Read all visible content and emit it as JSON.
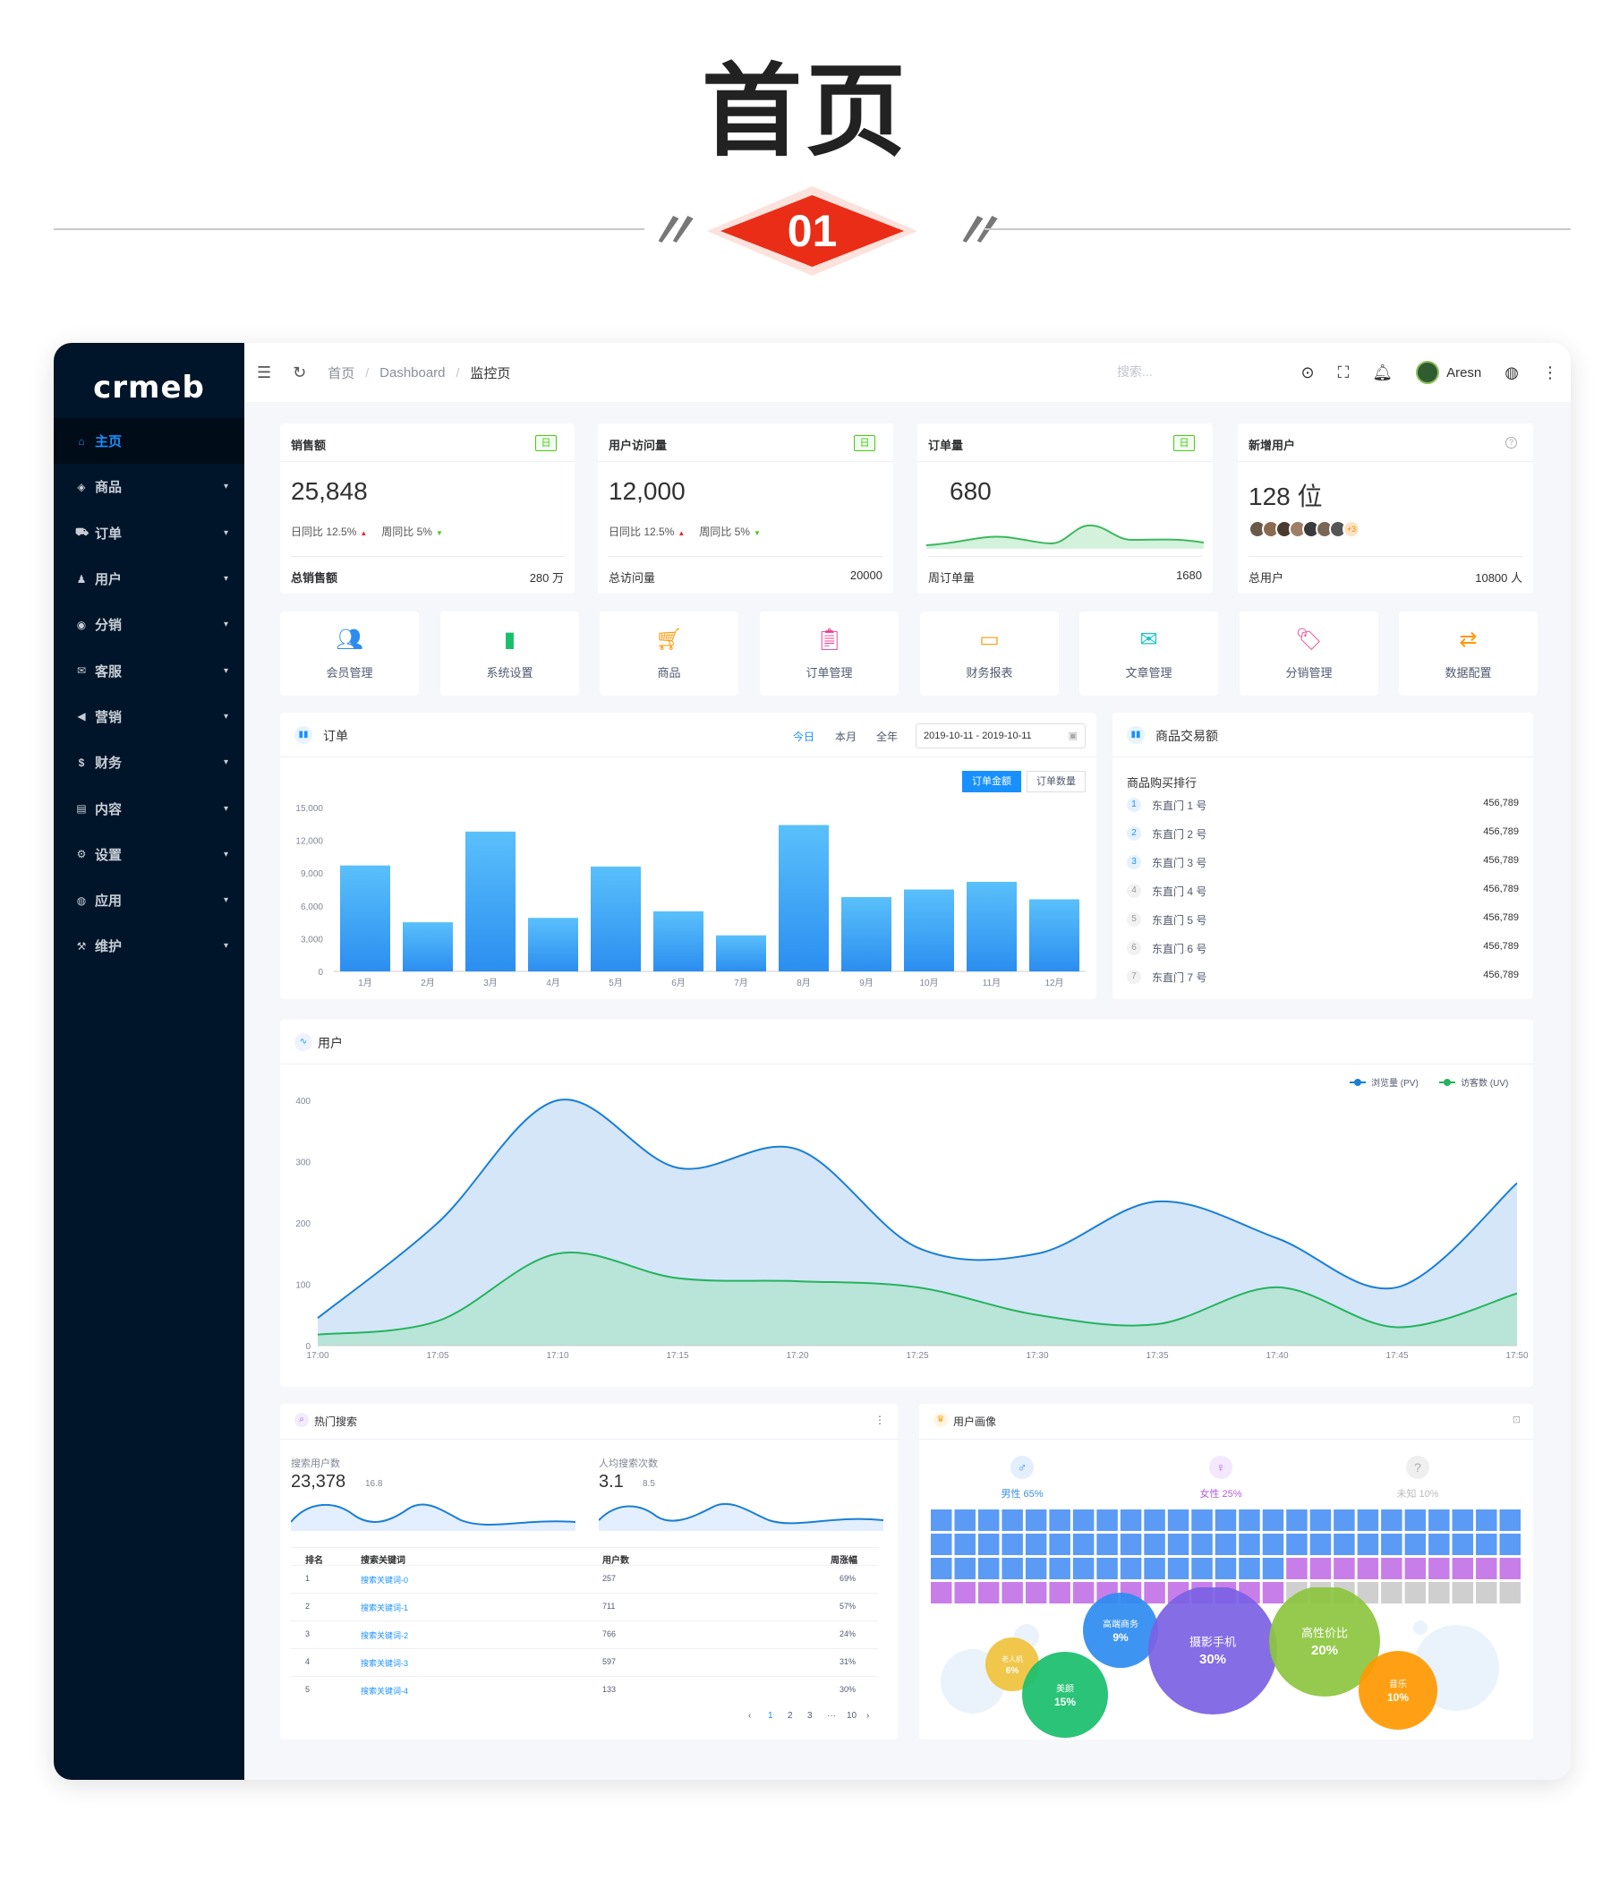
{
  "banner": {
    "title": "首页",
    "number": "01"
  },
  "sidebar": {
    "logo": "crmeb",
    "items": [
      {
        "icon": "⌂",
        "label": "主页"
      },
      {
        "icon": "◈",
        "label": "商品"
      },
      {
        "icon": "⛟",
        "label": "订单"
      },
      {
        "icon": "♟",
        "label": "用户"
      },
      {
        "icon": "◉",
        "label": "分销"
      },
      {
        "icon": "✉",
        "label": "客服"
      },
      {
        "icon": "◀",
        "label": "营销"
      },
      {
        "icon": "$",
        "label": "财务"
      },
      {
        "icon": "▤",
        "label": "内容"
      },
      {
        "icon": "⚙",
        "label": "设置"
      },
      {
        "icon": "◍",
        "label": "应用"
      },
      {
        "icon": "⚒",
        "label": "维护"
      }
    ]
  },
  "topbar": {
    "breadcrumb": [
      "首页",
      "Dashboard",
      "监控页"
    ],
    "search_placeholder": "搜索...",
    "username": "Aresn"
  },
  "kpis": [
    {
      "title": "销售额",
      "tag": "日",
      "value": "25,848",
      "day_label": "日同比 12.5%",
      "week_label": "周同比 5%",
      "foot_label": "总销售额",
      "foot_value": "280 万"
    },
    {
      "title": "用户访问量",
      "tag": "日",
      "value": "12,000",
      "day_label": "日同比 12.5%",
      "week_label": "周同比 5%",
      "foot_label": "总访问量",
      "foot_value": "20000"
    },
    {
      "title": "订单量",
      "tag": "日",
      "value": "680",
      "foot_label": "周订单量",
      "foot_value": "1680"
    },
    {
      "title": "新增用户",
      "value": "128 位",
      "avatar_more": "+3",
      "foot_label": "总用户",
      "foot_value": "10800 人"
    }
  ],
  "quick_nav": [
    {
      "label": "会员管理",
      "icon": "members-icon",
      "color": "#2d8cf0"
    },
    {
      "label": "系统设置",
      "icon": "bar-icon",
      "color": "#19be6b"
    },
    {
      "label": "商品",
      "icon": "cart-icon",
      "color": "#ff9900"
    },
    {
      "label": "订单管理",
      "icon": "clipboard-icon",
      "color": "#ed3f94"
    },
    {
      "label": "财务报表",
      "icon": "card-icon",
      "color": "#f5a623"
    },
    {
      "label": "文章管理",
      "icon": "mail-icon",
      "color": "#19c9c5"
    },
    {
      "label": "分销管理",
      "icon": "tag-icon",
      "color": "#ed4f98"
    },
    {
      "label": "数据配置",
      "icon": "toggle-icon",
      "color": "#ff9900"
    }
  ],
  "orders_panel": {
    "title": "订单",
    "filters": [
      "今日",
      "本月",
      "全年"
    ],
    "date_range": "2019-10-11 - 2019-10-11",
    "seg_amount": "订单金额",
    "seg_count": "订单数量"
  },
  "trade_panel": {
    "title": "商品交易额",
    "subtitle": "商品购买排行",
    "rows": [
      {
        "rank": "1",
        "name": "东直门 1 号",
        "value": "456,789"
      },
      {
        "rank": "2",
        "name": "东直门 2 号",
        "value": "456,789"
      },
      {
        "rank": "3",
        "name": "东直门 3 号",
        "value": "456,789"
      },
      {
        "rank": "4",
        "name": "东直门 4 号",
        "value": "456,789"
      },
      {
        "rank": "5",
        "name": "东直门 5 号",
        "value": "456,789"
      },
      {
        "rank": "6",
        "name": "东直门 6 号",
        "value": "456,789"
      },
      {
        "rank": "7",
        "name": "东直门 7 号",
        "value": "456,789"
      }
    ]
  },
  "users_panel": {
    "title": "用户",
    "legend_pv": "浏览量 (PV)",
    "legend_uv": "访客数 (UV)",
    "pv_color": "#1a7fd4",
    "uv_color": "#25b35e"
  },
  "hot_search": {
    "title": "热门搜索",
    "users_label": "搜索用户数",
    "users_value": "23,378",
    "users_change": "16.8",
    "avg_label": "人均搜索次数",
    "avg_value": "3.1",
    "avg_change": "8.5",
    "headers": [
      "排名",
      "搜索关键词",
      "用户数",
      "周涨幅"
    ],
    "rows": [
      {
        "rank": "1",
        "kw": "搜索关键词-0",
        "users": "257",
        "change": "69%"
      },
      {
        "rank": "2",
        "kw": "搜索关键词-1",
        "users": "711",
        "change": "57%"
      },
      {
        "rank": "3",
        "kw": "搜索关键词-2",
        "users": "766",
        "change": "24%"
      },
      {
        "rank": "4",
        "kw": "搜索关键词-3",
        "users": "597",
        "change": "31%"
      },
      {
        "rank": "5",
        "kw": "搜索关键词-4",
        "users": "133",
        "change": "30%"
      }
    ],
    "pager": [
      "‹",
      "1",
      "2",
      "3",
      "···",
      "10",
      "›"
    ]
  },
  "portrait": {
    "title": "用户画像",
    "male": "男性 65%",
    "female": "女性 25%",
    "unknown": "未知 10%",
    "male_color": "#5b9bf5",
    "female_color": "#c87ee8",
    "unknown_color": "#cfcfcf",
    "bubbles": [
      {
        "label": "老人机",
        "value": "6%",
        "color": "#f0c23c"
      },
      {
        "label": "美颜",
        "value": "15%",
        "color": "#19be6b"
      },
      {
        "label": "高端商务",
        "value": "9%",
        "color": "#2d8cf0"
      },
      {
        "label": "摄影手机",
        "value": "30%",
        "color": "#7b61e4"
      },
      {
        "label": "高性价比",
        "value": "20%",
        "color": "#8cc63f"
      },
      {
        "label": "音乐",
        "value": "10%",
        "color": "#ff9800"
      }
    ]
  },
  "chart_data": [
    {
      "type": "bar",
      "title": "订单",
      "categories": [
        "1月",
        "2月",
        "3月",
        "4月",
        "5月",
        "6月",
        "7月",
        "8月",
        "9月",
        "10月",
        "11月",
        "12月"
      ],
      "values": [
        9700,
        4500,
        12800,
        4900,
        9600,
        5500,
        3300,
        13400,
        6800,
        7500,
        8200,
        6600
      ],
      "ylim": [
        0,
        15000
      ],
      "yticks": [
        "15,000",
        "12,000",
        "9,000",
        "6,000",
        "3,000",
        "0"
      ],
      "grid": false
    },
    {
      "type": "area",
      "title": "用户",
      "x": [
        "17:00",
        "17:05",
        "17:10",
        "17:15",
        "17:20",
        "17:25",
        "17:30",
        "17:35",
        "17:40",
        "17:45",
        "17:50"
      ],
      "yticks": [
        "400",
        "300",
        "200",
        "100",
        "0"
      ],
      "ylim": [
        0,
        400
      ],
      "series": [
        {
          "name": "浏览量 (PV)",
          "values": [
            45,
            200,
            400,
            290,
            320,
            160,
            150,
            235,
            175,
            95,
            265
          ]
        },
        {
          "name": "访客数 (UV)",
          "values": [
            18,
            40,
            150,
            110,
            105,
            95,
            50,
            35,
            95,
            30,
            85
          ]
        }
      ],
      "legend": "top-right"
    }
  ]
}
